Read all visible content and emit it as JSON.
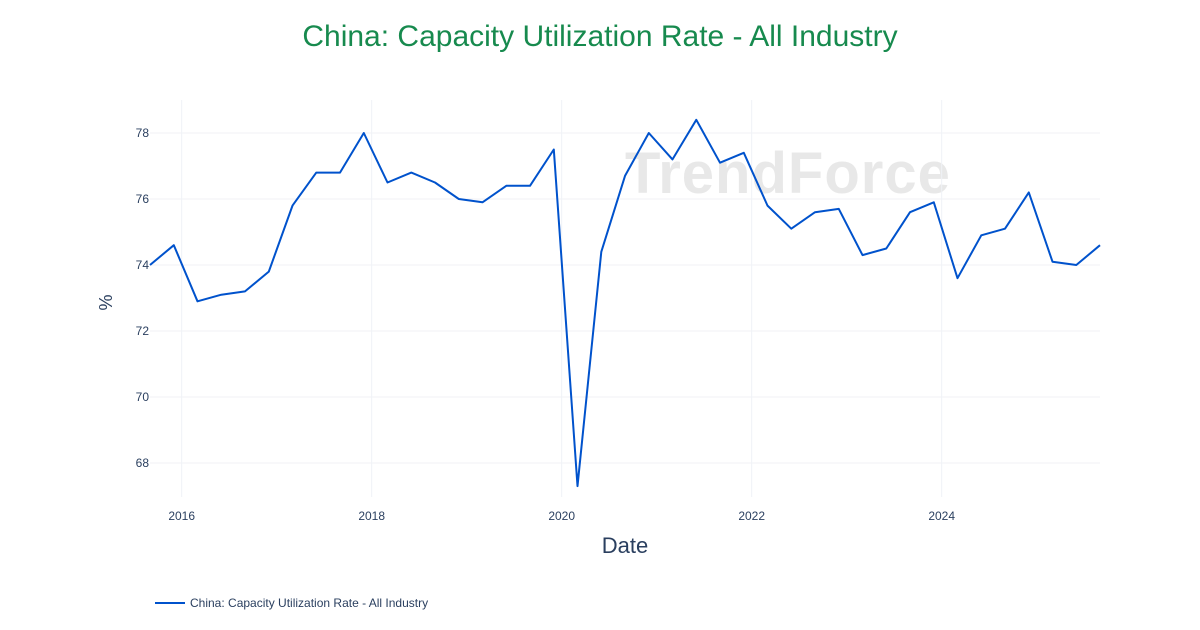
{
  "title": "China: Capacity Utilization Rate - All Industry",
  "watermark": "TrendForce",
  "chart_data": {
    "type": "line",
    "title": "China: Capacity Utilization Rate - All Industry",
    "xlabel": "Date",
    "ylabel": "%",
    "xlim": [
      "2015-09",
      "2025-09"
    ],
    "ylim": [
      66.97,
      79.0
    ],
    "x_ticks": [
      "2016",
      "2018",
      "2020",
      "2022",
      "2024"
    ],
    "y_ticks": [
      68,
      70,
      72,
      74,
      76,
      78
    ],
    "grid": true,
    "legend_position": "bottom-left",
    "line_color": "#0052cc",
    "series": [
      {
        "name": "China: Capacity Utilization Rate - All Industry",
        "x": [
          "2015-09",
          "2015-12",
          "2016-03",
          "2016-06",
          "2016-09",
          "2016-12",
          "2017-03",
          "2017-06",
          "2017-09",
          "2017-12",
          "2018-03",
          "2018-06",
          "2018-09",
          "2018-12",
          "2019-03",
          "2019-06",
          "2019-09",
          "2019-12",
          "2020-03",
          "2020-06",
          "2020-09",
          "2020-12",
          "2021-03",
          "2021-06",
          "2021-09",
          "2021-12",
          "2022-03",
          "2022-06",
          "2022-09",
          "2022-12",
          "2023-03",
          "2023-06",
          "2023-09",
          "2023-12",
          "2024-03",
          "2024-06",
          "2024-09",
          "2024-12",
          "2025-03",
          "2025-06",
          "2025-09"
        ],
        "values": [
          74.0,
          74.6,
          72.9,
          73.1,
          73.2,
          73.8,
          75.8,
          76.8,
          76.8,
          78.0,
          76.5,
          76.8,
          76.5,
          76.0,
          75.9,
          76.4,
          76.4,
          77.5,
          67.3,
          74.4,
          76.7,
          78.0,
          77.2,
          78.4,
          77.1,
          77.4,
          75.8,
          75.1,
          75.6,
          75.7,
          74.3,
          74.5,
          75.6,
          75.9,
          73.6,
          74.9,
          75.1,
          76.2,
          74.1,
          74.0,
          74.6
        ]
      }
    ]
  }
}
